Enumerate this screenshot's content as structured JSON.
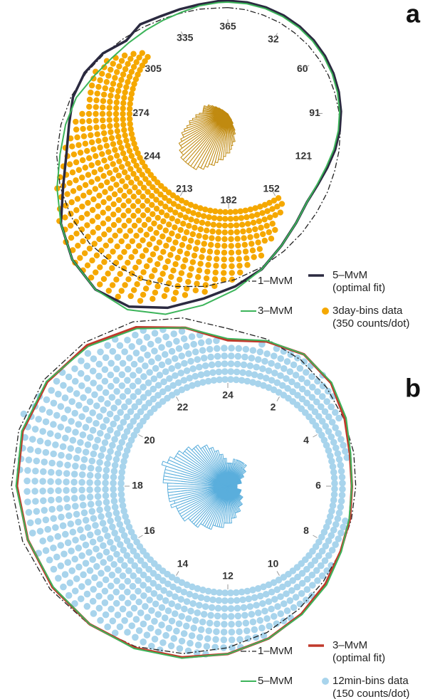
{
  "chart_data": [
    {
      "type": "polar-dots",
      "label": "a",
      "xlim": [
        0,
        365
      ],
      "xticks": [
        365,
        32,
        60,
        91,
        121,
        152,
        182,
        213,
        244,
        274,
        305,
        335
      ],
      "dots": {
        "name": "3day-bins data (350 counts/dot)",
        "color": "#f5a800",
        "rose_color": "#c08a10",
        "values": [
          0,
          0,
          0,
          0,
          0,
          0,
          0,
          0,
          0,
          0,
          0,
          0,
          0,
          0,
          0,
          0,
          0,
          0,
          0,
          0,
          0,
          0,
          0,
          0,
          0,
          0,
          0,
          0,
          0,
          0,
          0,
          0,
          0,
          0,
          0,
          0,
          0,
          0,
          0,
          0,
          0,
          0,
          0,
          0,
          0,
          0,
          0,
          0,
          0,
          0,
          2,
          3,
          3,
          5,
          6,
          6,
          8,
          8,
          9,
          10,
          11,
          11,
          12,
          13,
          13,
          14,
          15,
          15,
          16,
          17,
          17,
          18,
          18,
          18,
          18,
          18,
          18,
          17,
          17,
          16,
          16,
          15,
          14,
          14,
          13,
          12,
          11,
          11,
          10,
          9,
          9,
          8,
          7,
          7,
          7,
          7,
          7,
          7,
          6,
          6,
          5,
          4,
          3,
          2,
          0,
          0,
          0,
          0,
          0,
          0,
          0,
          0,
          0,
          0,
          0,
          0,
          0,
          0,
          0,
          0,
          0,
          0
        ]
      },
      "series": [
        {
          "name": "1–MvM",
          "color": "#222222",
          "style": "dashdot",
          "x": [
            0,
            10,
            20,
            30,
            40,
            50,
            60,
            70,
            80,
            90,
            100,
            110,
            120,
            130,
            140,
            150,
            160,
            170,
            180,
            190,
            200,
            210,
            220,
            230,
            240,
            250,
            260,
            270,
            280,
            290,
            300,
            310,
            320,
            330,
            340,
            350,
            360
          ],
          "values": [
            1.2,
            1.1,
            1.0,
            1.0,
            1.0,
            1.1,
            1.2,
            1.4,
            1.6,
            1.9,
            2.3,
            2.8,
            3.4,
            4.2,
            5.1,
            6.2,
            7.4,
            8.7,
            10,
            11.2,
            12.2,
            13,
            13.4,
            13.5,
            13.2,
            12.5,
            11.5,
            10.2,
            8.8,
            7.3,
            5.8,
            4.5,
            3.4,
            2.5,
            1.9,
            1.5,
            1.2
          ]
        },
        {
          "name": "5–MvM (optimal fit)",
          "color": "#2b2a40",
          "style": "bold",
          "x": [
            0,
            10,
            20,
            30,
            40,
            50,
            60,
            70,
            80,
            90,
            100,
            110,
            120,
            130,
            140,
            150,
            160,
            170,
            180,
            190,
            200,
            210,
            220,
            230,
            240,
            250,
            260,
            270,
            280,
            290,
            300,
            310,
            320,
            330,
            340,
            350,
            360
          ],
          "values": [
            2.2,
            2.2,
            2.2,
            2.2,
            2.2,
            2.2,
            2.2,
            2.2,
            2.2,
            2.2,
            2.2,
            2.2,
            2.2,
            2.4,
            3,
            4.5,
            6.5,
            9,
            11,
            13,
            15.5,
            17.5,
            18,
            17,
            15,
            12,
            10,
            9,
            8.5,
            7.5,
            6,
            4,
            4,
            3,
            2.5,
            2.2,
            2.2
          ]
        },
        {
          "name": "3–MvM",
          "color": "#3cb45a",
          "style": "solid",
          "x": [
            0,
            10,
            20,
            30,
            40,
            50,
            60,
            70,
            80,
            90,
            100,
            110,
            120,
            130,
            140,
            150,
            160,
            170,
            180,
            190,
            200,
            210,
            220,
            230,
            240,
            250,
            260,
            270,
            280,
            290,
            300,
            310,
            320,
            330,
            340,
            350,
            360
          ],
          "values": [
            2,
            2,
            2,
            2,
            2,
            2,
            2,
            2,
            2,
            2,
            2,
            2,
            2,
            2.3,
            3,
            4.5,
            6.5,
            9,
            11.5,
            14,
            16.5,
            18,
            18,
            17,
            15,
            13,
            11,
            9.5,
            8,
            6,
            4.5,
            3.5,
            2.8,
            2.3,
            2,
            2,
            2
          ]
        }
      ]
    },
    {
      "type": "polar-dots",
      "label": "b",
      "xlim": [
        0,
        24
      ],
      "xticks": [
        24,
        2,
        4,
        6,
        8,
        10,
        12,
        14,
        16,
        18,
        20,
        22
      ],
      "dots": {
        "name": "12min-bins data (150 counts/dot)",
        "color": "#a8d4ec",
        "rose_color": "#5aaedc",
        "values": [
          5,
          5,
          5,
          5,
          6,
          5,
          6,
          6,
          6,
          6,
          6,
          6,
          5,
          6,
          5,
          5,
          5,
          4,
          4,
          4,
          3,
          3,
          3,
          3,
          3,
          3,
          2,
          2,
          2,
          2,
          2,
          2,
          2,
          2,
          2,
          3,
          3,
          3,
          3,
          3,
          3,
          3,
          4,
          4,
          4,
          4,
          4,
          5,
          5,
          5,
          5,
          6,
          6,
          6,
          6,
          7,
          7,
          7,
          8,
          8,
          8,
          8,
          9,
          9,
          9,
          9,
          9,
          10,
          10,
          10,
          10,
          10,
          11,
          11,
          11,
          11,
          11,
          12,
          12,
          12,
          12,
          12,
          12,
          13,
          12,
          13,
          13,
          13,
          13,
          13,
          13,
          14,
          14,
          14,
          14,
          14,
          15,
          14,
          14,
          13,
          13,
          13,
          12,
          12,
          12,
          11,
          11,
          11,
          10,
          10,
          10,
          9,
          9,
          8,
          8,
          7,
          7,
          6,
          6,
          5
        ]
      },
      "series": [
        {
          "name": "1–MvM",
          "color": "#222222",
          "style": "dashdot",
          "x": [
            0,
            1,
            2,
            3,
            4,
            5,
            6,
            7,
            8,
            9,
            10,
            11,
            12,
            13,
            14,
            15,
            16,
            17,
            18,
            19,
            20,
            21,
            22,
            23,
            24
          ],
          "values": [
            6.5,
            5.8,
            5,
            4.2,
            3.5,
            3,
            2.7,
            2.7,
            3,
            3.6,
            4.5,
            5.7,
            7,
            8.5,
            10,
            11.4,
            12.6,
            13.5,
            14,
            14,
            13.5,
            12.3,
            10.6,
            8.6,
            6.5
          ]
        },
        {
          "name": "3–MvM (optimal fit)",
          "color": "#c0392b",
          "style": "bold",
          "x": [
            0,
            1,
            2,
            3,
            4,
            5,
            6,
            7,
            8,
            9,
            10,
            11,
            12,
            13,
            14,
            15,
            16,
            17,
            18,
            19,
            20,
            21,
            22,
            23,
            24
          ],
          "values": [
            5,
            5.5,
            5.8,
            5,
            3.6,
            2.5,
            2.2,
            2.5,
            3,
            4,
            5.2,
            6.5,
            7.8,
            9,
            10.2,
            11.3,
            12.2,
            12.8,
            13.3,
            13.5,
            13,
            11.8,
            9.8,
            7.3,
            5
          ]
        },
        {
          "name": "5–MvM",
          "color": "#3cb45a",
          "style": "solid",
          "x": [
            0,
            1,
            2,
            3,
            4,
            5,
            6,
            7,
            8,
            9,
            10,
            11,
            12,
            13,
            14,
            15,
            16,
            17,
            18,
            19,
            20,
            21,
            22,
            23,
            24
          ],
          "values": [
            5.2,
            5.6,
            5.8,
            5.1,
            3.8,
            2.6,
            2.2,
            2.4,
            3.1,
            4.2,
            5.3,
            6.5,
            7.8,
            9.1,
            10.3,
            11.3,
            12.1,
            12.8,
            13.4,
            13.6,
            13.1,
            11.6,
            9.6,
            7.3,
            5.2
          ]
        }
      ]
    }
  ]
}
